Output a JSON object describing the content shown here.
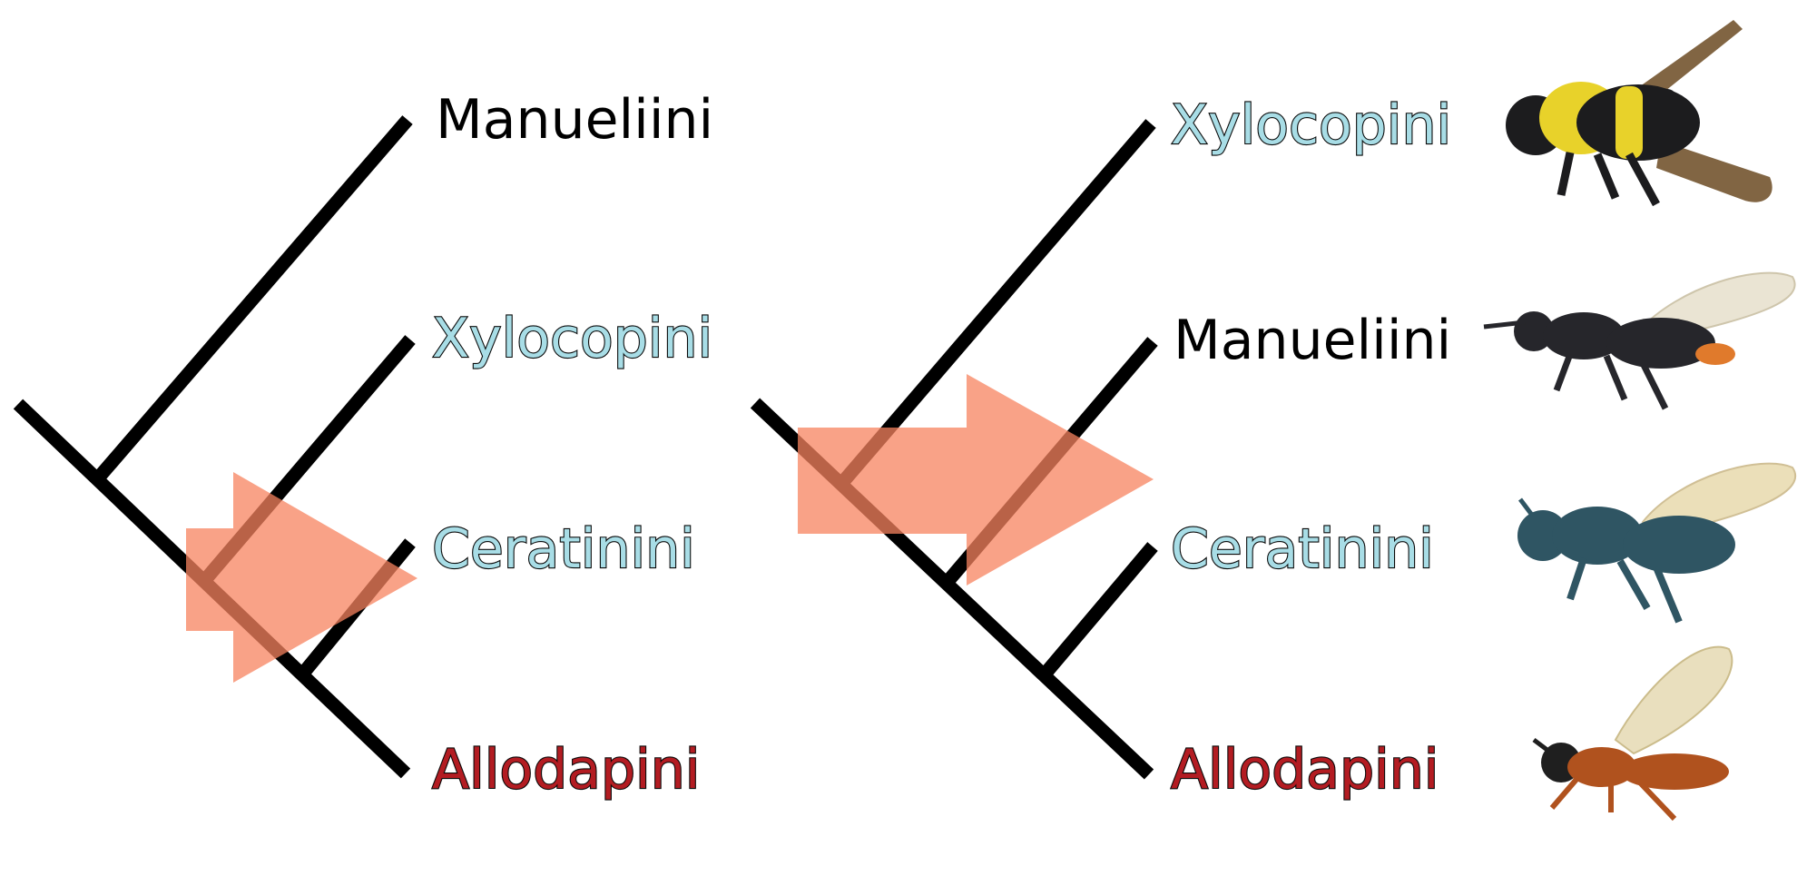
{
  "tree_left": {
    "tips": [
      {
        "label": "Manueliini",
        "style": "plain"
      },
      {
        "label": "Xylocopini",
        "style": "blue"
      },
      {
        "label": "Ceratinini",
        "style": "blue"
      },
      {
        "label": "Allodapini",
        "style": "red"
      }
    ]
  },
  "tree_right": {
    "tips": [
      {
        "label": "Xylocopini",
        "style": "blue"
      },
      {
        "label": "Manueliini",
        "style": "plain"
      },
      {
        "label": "Ceratinini",
        "style": "blue"
      },
      {
        "label": "Allodapini",
        "style": "red"
      }
    ]
  },
  "photos": [
    {
      "subject": "Xylocopini bee",
      "colors": {
        "body": "#1c1c1e",
        "band": "#e8d22a",
        "wing": "#6b4a22"
      }
    },
    {
      "subject": "Manueliini bee",
      "colors": {
        "body": "#26262b",
        "tip": "#e07a2c",
        "wing": "#e8e2cf"
      }
    },
    {
      "subject": "Ceratinini bee",
      "colors": {
        "body": "#2f5563",
        "wing": "#e9dcb2"
      }
    },
    {
      "subject": "Allodapini bee",
      "colors": {
        "body": "#b0521e",
        "wing": "#e7dcb8"
      }
    }
  ]
}
